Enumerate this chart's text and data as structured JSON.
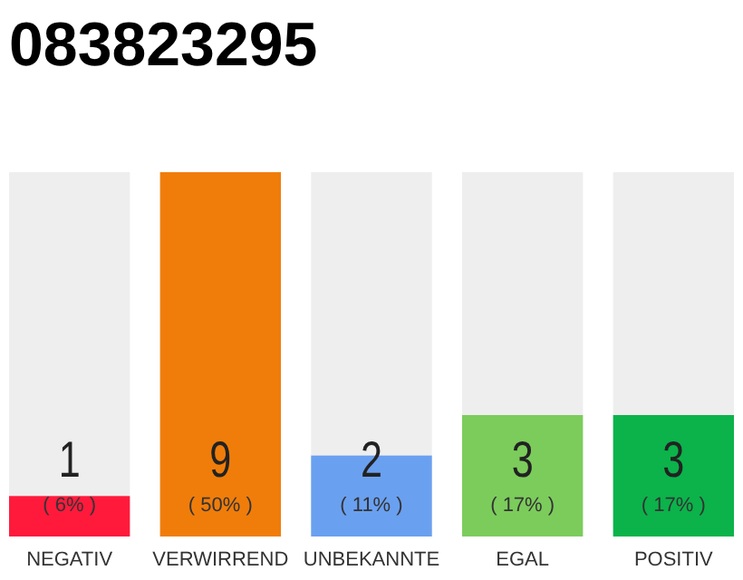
{
  "chart_data": {
    "type": "bar",
    "title": "083823295",
    "categories": [
      "NEGATIV",
      "VERWIRREND",
      "UNBEKANNTE",
      "EGAL",
      "POSITIV"
    ],
    "values": [
      1,
      9,
      2,
      3,
      3
    ],
    "colors": [
      "#ff1a3c",
      "#f07d0a",
      "#6aa0f0",
      "#7ccc5c",
      "#0bb34a"
    ],
    "ylim": [
      0,
      9
    ],
    "tick_labels": "x",
    "data_labels": true,
    "annotations": [
      "( 6% )",
      "( 50% )",
      "( 11% )",
      "( 17% )",
      "( 17% )"
    ]
  }
}
